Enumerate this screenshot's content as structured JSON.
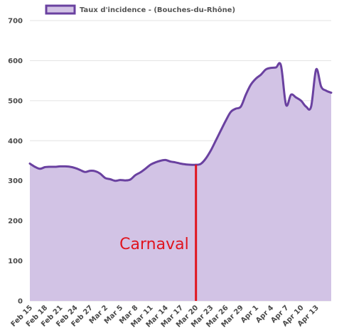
{
  "chart_data": {
    "type": "area",
    "title": "",
    "xlabel": "",
    "ylabel": "",
    "ylim": [
      0,
      700
    ],
    "y_ticks": [
      0,
      100,
      200,
      300,
      400,
      500,
      600,
      700
    ],
    "grid": "horizontal",
    "legend_position": "top-left",
    "x_tick_labels": [
      "Feb 15",
      "Feb 18",
      "Feb 21",
      "Feb 24",
      "Feb 27",
      "Mar 2",
      "Mar 5",
      "Mar 8",
      "Mar 11",
      "Mar 14",
      "Mar 17",
      "Mar 20",
      "Mar 23",
      "Mar 26",
      "Mar 29",
      "Apr 1",
      "Apr 4",
      "Apr 7",
      "Apr 10",
      "Apr 13"
    ],
    "colors": {
      "line": "#6a41a0",
      "fill": "#d2c3e5",
      "annotation": "#e0141e",
      "grid": "#e3e3e3"
    },
    "series": [
      {
        "name": "Taux d'incidence - (Bouches-du-Rhône)",
        "points": [
          [
            "Feb 15",
            343
          ],
          [
            "Feb 16",
            335
          ],
          [
            "Feb 17",
            330
          ],
          [
            "Feb 18",
            334
          ],
          [
            "Feb 19",
            335
          ],
          [
            "Feb 20",
            335
          ],
          [
            "Feb 21",
            336
          ],
          [
            "Feb 22",
            336
          ],
          [
            "Feb 23",
            335
          ],
          [
            "Feb 24",
            332
          ],
          [
            "Feb 25",
            327
          ],
          [
            "Feb 26",
            322
          ],
          [
            "Feb 27",
            325
          ],
          [
            "Feb 28",
            324
          ],
          [
            "Mar 1",
            318
          ],
          [
            "Mar 2",
            307
          ],
          [
            "Mar 3",
            304
          ],
          [
            "Mar 4",
            300
          ],
          [
            "Mar 5",
            302
          ],
          [
            "Mar 6",
            301
          ],
          [
            "Mar 7",
            303
          ],
          [
            "Mar 8",
            314
          ],
          [
            "Mar 9",
            321
          ],
          [
            "Mar 10",
            330
          ],
          [
            "Mar 11",
            340
          ],
          [
            "Mar 12",
            346
          ],
          [
            "Mar 13",
            350
          ],
          [
            "Mar 14",
            352
          ],
          [
            "Mar 15",
            348
          ],
          [
            "Mar 16",
            346
          ],
          [
            "Mar 17",
            343
          ],
          [
            "Mar 18",
            341
          ],
          [
            "Mar 19",
            340
          ],
          [
            "Mar 20",
            340
          ],
          [
            "Mar 21",
            342
          ],
          [
            "Mar 22",
            355
          ],
          [
            "Mar 23",
            375
          ],
          [
            "Mar 24",
            400
          ],
          [
            "Mar 25",
            425
          ],
          [
            "Mar 26",
            450
          ],
          [
            "Mar 27",
            472
          ],
          [
            "Mar 28",
            480
          ],
          [
            "Mar 29",
            485
          ],
          [
            "Mar 30",
            515
          ],
          [
            "Mar 31",
            540
          ],
          [
            "Apr 1",
            555
          ],
          [
            "Apr 2",
            565
          ],
          [
            "Apr 3",
            578
          ],
          [
            "Apr 4",
            582
          ],
          [
            "Apr 5",
            583
          ],
          [
            "Apr 6",
            588
          ],
          [
            "Apr 7",
            490
          ],
          [
            "Apr 8",
            515
          ],
          [
            "Apr 9",
            508
          ],
          [
            "Apr 10",
            500
          ],
          [
            "Apr 11",
            485
          ],
          [
            "Apr 12",
            485
          ],
          [
            "Apr 13",
            578
          ],
          [
            "Apr 14",
            535
          ],
          [
            "Apr 15",
            525
          ],
          [
            "Apr 16",
            520
          ]
        ]
      }
    ],
    "annotations": [
      {
        "text": "Carnaval",
        "x": "Mar 20",
        "y_from": 0,
        "y_to": 340
      }
    ]
  }
}
